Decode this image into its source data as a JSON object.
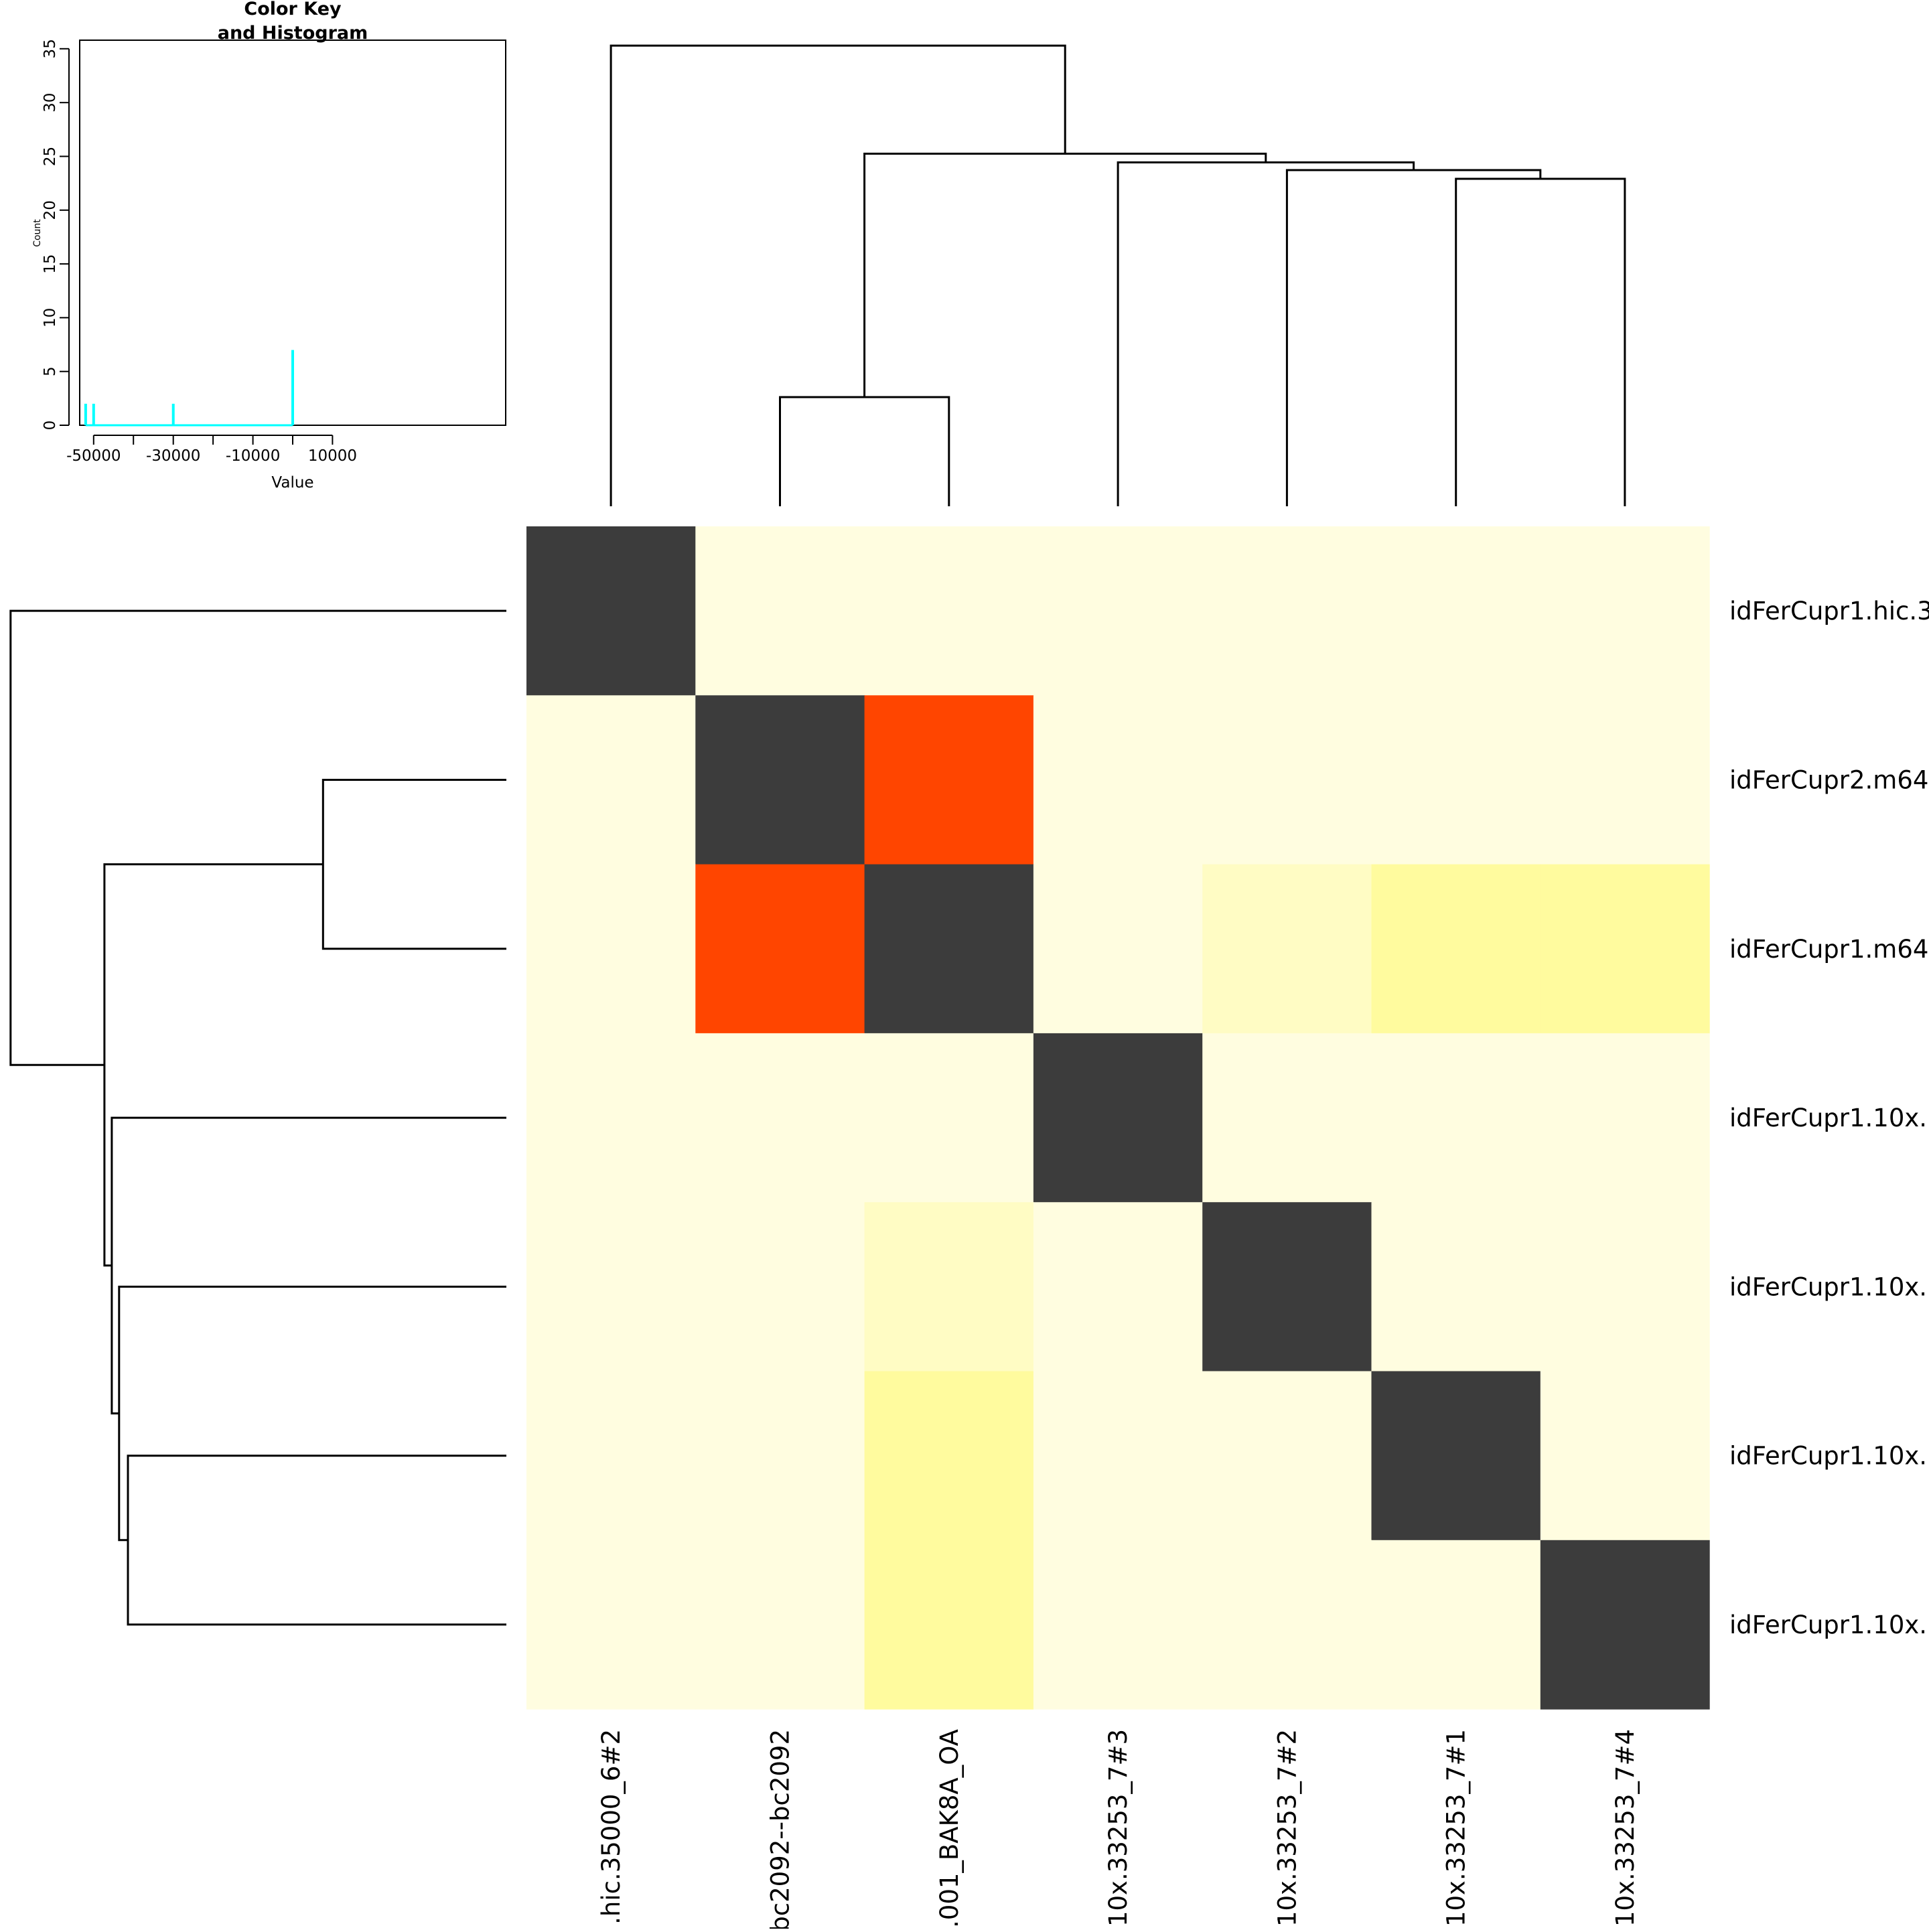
{
  "chart_data": {
    "type": "heatmap",
    "title": "",
    "row_labels": [
      "idFerCupr1.hic.3",
      "idFerCupr2.m64",
      "idFerCupr1.m64",
      "idFerCupr1.10x.",
      "idFerCupr1.10x.",
      "idFerCupr1.10x.",
      "idFerCupr1.10x."
    ],
    "col_labels": [
      ".hic.35000_6#2",
      "bc2092--bc2092",
      ".001_BAK8A_OA",
      "10x.33253_7#3",
      "10x.33253_7#2",
      "10x.33253_7#1",
      "10x.33253_7#4"
    ],
    "cell_colors": [
      [
        "#3c3c3c",
        "#fffde0",
        "#fffde0",
        "#fffde0",
        "#fffde0",
        "#fffde0",
        "#fffde0"
      ],
      [
        "#fffde0",
        "#3c3c3c",
        "#ff4500",
        "#fffde0",
        "#fffde0",
        "#fffde0",
        "#fffde0"
      ],
      [
        "#fffde0",
        "#ff4500",
        "#3c3c3c",
        "#fffde0",
        "#fffcc4",
        "#fffb9e",
        "#fffb9e"
      ],
      [
        "#fffde0",
        "#fffde0",
        "#fffde0",
        "#3c3c3c",
        "#fffde0",
        "#fffde0",
        "#fffde0"
      ],
      [
        "#fffde0",
        "#fffde0",
        "#fffcc4",
        "#fffde0",
        "#3c3c3c",
        "#fffde0",
        "#fffde0"
      ],
      [
        "#fffde0",
        "#fffde0",
        "#fffb9e",
        "#fffde0",
        "#fffde0",
        "#3c3c3c",
        "#fffde0"
      ],
      [
        "#fffde0",
        "#fffde0",
        "#fffb9e",
        "#fffde0",
        "#fffde0",
        "#fffde0",
        "#3c3c3c"
      ]
    ],
    "col_dendrogram": {
      "leaf_count": 7,
      "height_max": 35,
      "merges": [
        {
          "left": 1,
          "right": 2,
          "height": 10
        },
        {
          "left": 5,
          "right": 6,
          "height": 30
        },
        {
          "left": 4,
          "right": 5.5,
          "height": 30.8
        },
        {
          "left": 3,
          "right": 4.75,
          "height": 31.5
        },
        {
          "left": 1.5,
          "right": 3.875,
          "height": 32.3
        },
        {
          "left": 0,
          "right": 2.6875,
          "height": 42.2
        }
      ]
    },
    "row_dendrogram": {
      "leaf_count": 7,
      "height_max": 35,
      "merges": [
        {
          "left": 1,
          "right": 2,
          "height": 12.5
        },
        {
          "left": 5,
          "right": 6,
          "height": 25.8
        },
        {
          "left": 4,
          "right": 5.5,
          "height": 26.4
        },
        {
          "left": 3,
          "right": 4.75,
          "height": 26.9
        },
        {
          "left": 1.5,
          "right": 3.875,
          "height": 27.4
        },
        {
          "left": 0,
          "right": 2.6875,
          "height": 33.8
        }
      ]
    },
    "color_key": {
      "title_line1": "Color Key",
      "title_line2": "and Histogram",
      "xlabel": "Value",
      "ylabel": "Count",
      "x_ticks": [
        -50000,
        -30000,
        -10000,
        10000
      ],
      "x_tick_labels": [
        "-50000",
        "-30000",
        "-10000",
        "10000"
      ],
      "x_minor_ticks": [
        -40000,
        -20000,
        0
      ],
      "xlim": [
        -53500,
        53500
      ],
      "y_ticks": [
        0,
        5,
        10,
        15,
        20,
        25,
        30,
        35
      ],
      "y_tick_labels": [
        "0",
        "5",
        "10",
        "15",
        "20",
        "25",
        "30",
        "35"
      ],
      "ylim": [
        0,
        35.8
      ],
      "histogram": [
        {
          "x": -52000,
          "count": 2
        },
        {
          "x": -50000,
          "count": 2
        },
        {
          "x": -30000,
          "count": 2
        },
        {
          "x": 0,
          "count": 7
        }
      ],
      "baseline_range": [
        -52000,
        0
      ],
      "line_color": "#00ffff"
    }
  }
}
